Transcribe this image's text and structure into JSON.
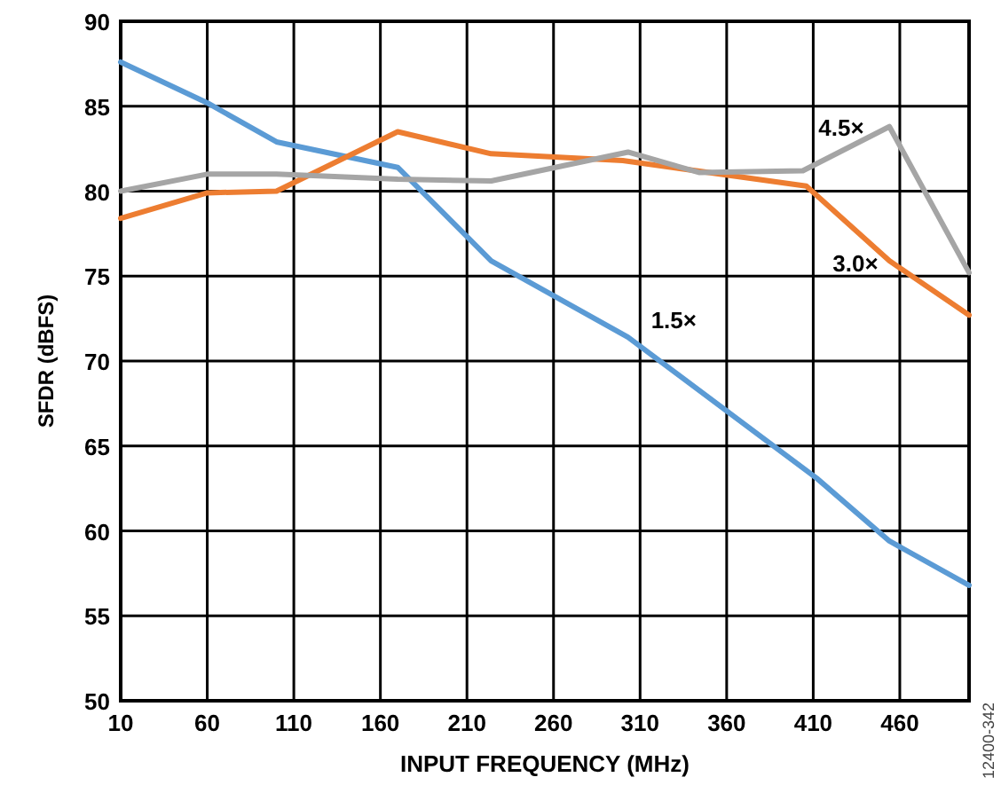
{
  "chart_data": {
    "type": "line",
    "xlabel": "INPUT FREQUENCY (MHz)",
    "ylabel": "SFDR (dBFS)",
    "xlim": [
      10,
      500
    ],
    "xticks": [
      10,
      60,
      110,
      160,
      210,
      260,
      310,
      360,
      410,
      460
    ],
    "ylim": [
      50,
      90
    ],
    "yticks": [
      50,
      55,
      60,
      65,
      70,
      75,
      80,
      85,
      90
    ],
    "grid": true,
    "marker": "none",
    "line_style": "solid",
    "series": [
      {
        "name": "1.5×",
        "color": "#5b9bd5",
        "x": [
          10,
          60,
          100,
          170,
          224,
          303,
          412,
          454,
          500
        ],
        "values": [
          87.6,
          85.2,
          82.9,
          81.4,
          75.9,
          71.4,
          63.1,
          59.4,
          56.8
        ]
      },
      {
        "name": "3.0×",
        "color": "#ed7d31",
        "x": [
          10,
          60,
          100,
          170,
          224,
          300,
          406,
          454,
          500
        ],
        "values": [
          78.4,
          79.9,
          80.0,
          83.5,
          82.2,
          81.8,
          80.3,
          75.9,
          72.7
        ]
      },
      {
        "name": "4.5×",
        "color": "#a5a5a5",
        "x": [
          10,
          60,
          100,
          170,
          224,
          303,
          344,
          404,
          454,
          500
        ],
        "values": [
          80.0,
          81.0,
          81.0,
          80.7,
          80.6,
          82.3,
          81.1,
          81.2,
          83.8,
          75.2
        ]
      }
    ],
    "annotations": [
      "12400-342"
    ]
  }
}
